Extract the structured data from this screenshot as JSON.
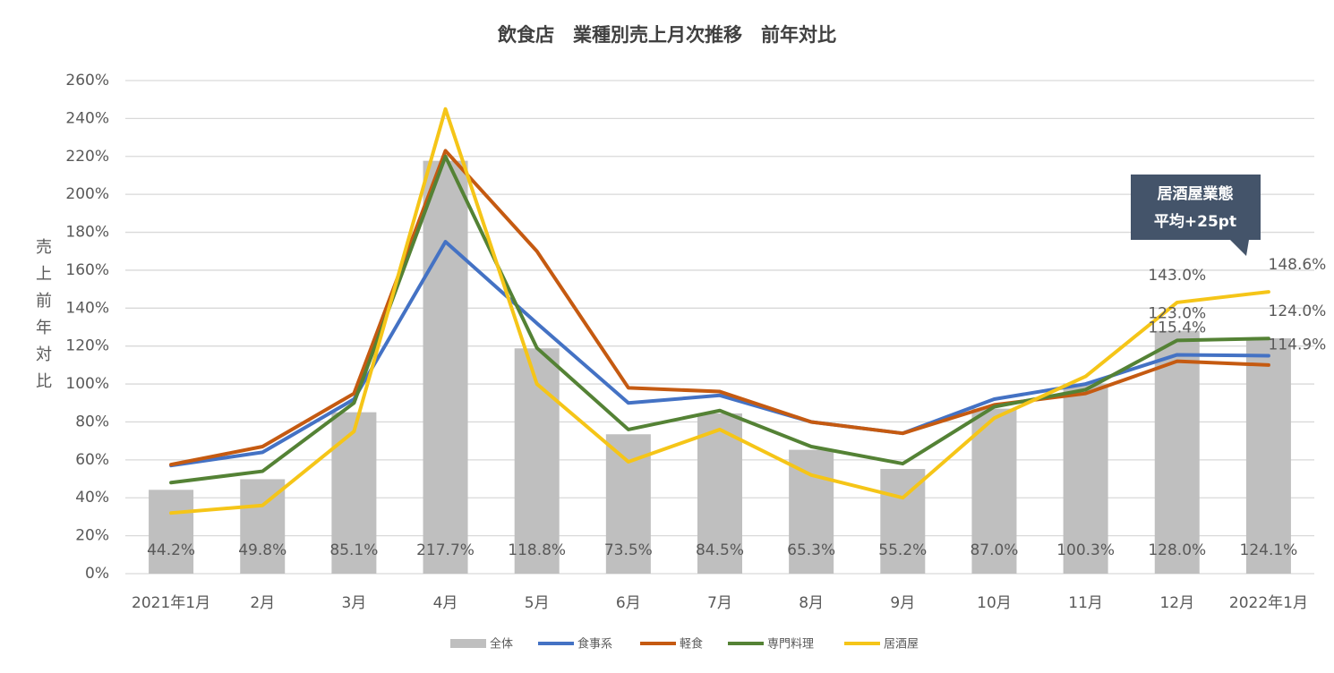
{
  "chart_data": {
    "type": "combo",
    "title": "飲食店　業種別売上月次推移　前年対比",
    "y_label": "売上前年対比",
    "categories": [
      "2021年1月",
      "2月",
      "3月",
      "4月",
      "5月",
      "6月",
      "7月",
      "8月",
      "9月",
      "10月",
      "11月",
      "12月",
      "2022年1月"
    ],
    "ylim": [
      0,
      260
    ],
    "yticks": [
      {
        "value": 0,
        "label": "0%"
      },
      {
        "value": 20,
        "label": "20%"
      },
      {
        "value": 40,
        "label": "40%"
      },
      {
        "value": 60,
        "label": "60%"
      },
      {
        "value": 80,
        "label": "80%"
      },
      {
        "value": 100,
        "label": "100%"
      },
      {
        "value": 120,
        "label": "120%"
      },
      {
        "value": 140,
        "label": "140%"
      },
      {
        "value": 160,
        "label": "160%"
      },
      {
        "value": 180,
        "label": "180%"
      },
      {
        "value": 200,
        "label": "200%"
      },
      {
        "value": 220,
        "label": "220%"
      },
      {
        "value": 240,
        "label": "240%"
      },
      {
        "value": 260,
        "label": "260%"
      }
    ],
    "grid": true,
    "legend": "bottom",
    "series": [
      {
        "name": "全体",
        "type": "bar",
        "color": "#bfbfbf",
        "values": [
          44.2,
          49.8,
          85.1,
          217.7,
          118.8,
          73.5,
          84.5,
          65.3,
          55.2,
          87.0,
          100.3,
          128.0,
          124.1
        ],
        "value_labels": [
          "44.2%",
          "49.8%",
          "85.1%",
          "217.7%",
          "118.8%",
          "73.5%",
          "84.5%",
          "65.3%",
          "55.2%",
          "87.0%",
          "100.3%",
          "128.0%",
          "124.1%"
        ]
      },
      {
        "name": "食事系",
        "type": "line",
        "color": "#4472c4",
        "values": [
          57,
          64,
          92,
          175,
          132,
          90,
          94,
          80,
          74,
          92,
          100,
          115.4,
          114.9
        ],
        "value_labels": [
          null,
          null,
          null,
          null,
          null,
          null,
          null,
          null,
          null,
          null,
          null,
          "115.4%",
          "114.9%"
        ]
      },
      {
        "name": "軽食",
        "type": "line",
        "color": "#c55a11",
        "values": [
          57.5,
          67,
          95,
          223,
          170,
          98,
          96,
          80,
          74,
          89,
          95,
          112,
          110
        ]
      },
      {
        "name": "専門料理",
        "type": "line",
        "color": "#548235",
        "values": [
          48,
          54,
          90,
          220,
          119,
          76,
          86,
          67,
          58,
          88,
          97,
          123.0,
          124.0
        ],
        "value_labels": [
          null,
          null,
          null,
          null,
          null,
          null,
          null,
          null,
          null,
          null,
          null,
          "123.0%",
          "124.0%"
        ]
      },
      {
        "name": "居酒屋",
        "type": "line",
        "color": "#f5c518",
        "values": [
          32,
          36,
          75,
          245,
          100,
          59,
          76,
          52,
          40,
          82,
          104,
          143.0,
          148.6
        ],
        "value_labels": [
          null,
          null,
          null,
          null,
          null,
          null,
          null,
          null,
          null,
          null,
          null,
          "143.0%",
          "148.6%"
        ]
      }
    ],
    "annotation": [
      "居酒屋業態",
      "平均+25pt"
    ]
  }
}
